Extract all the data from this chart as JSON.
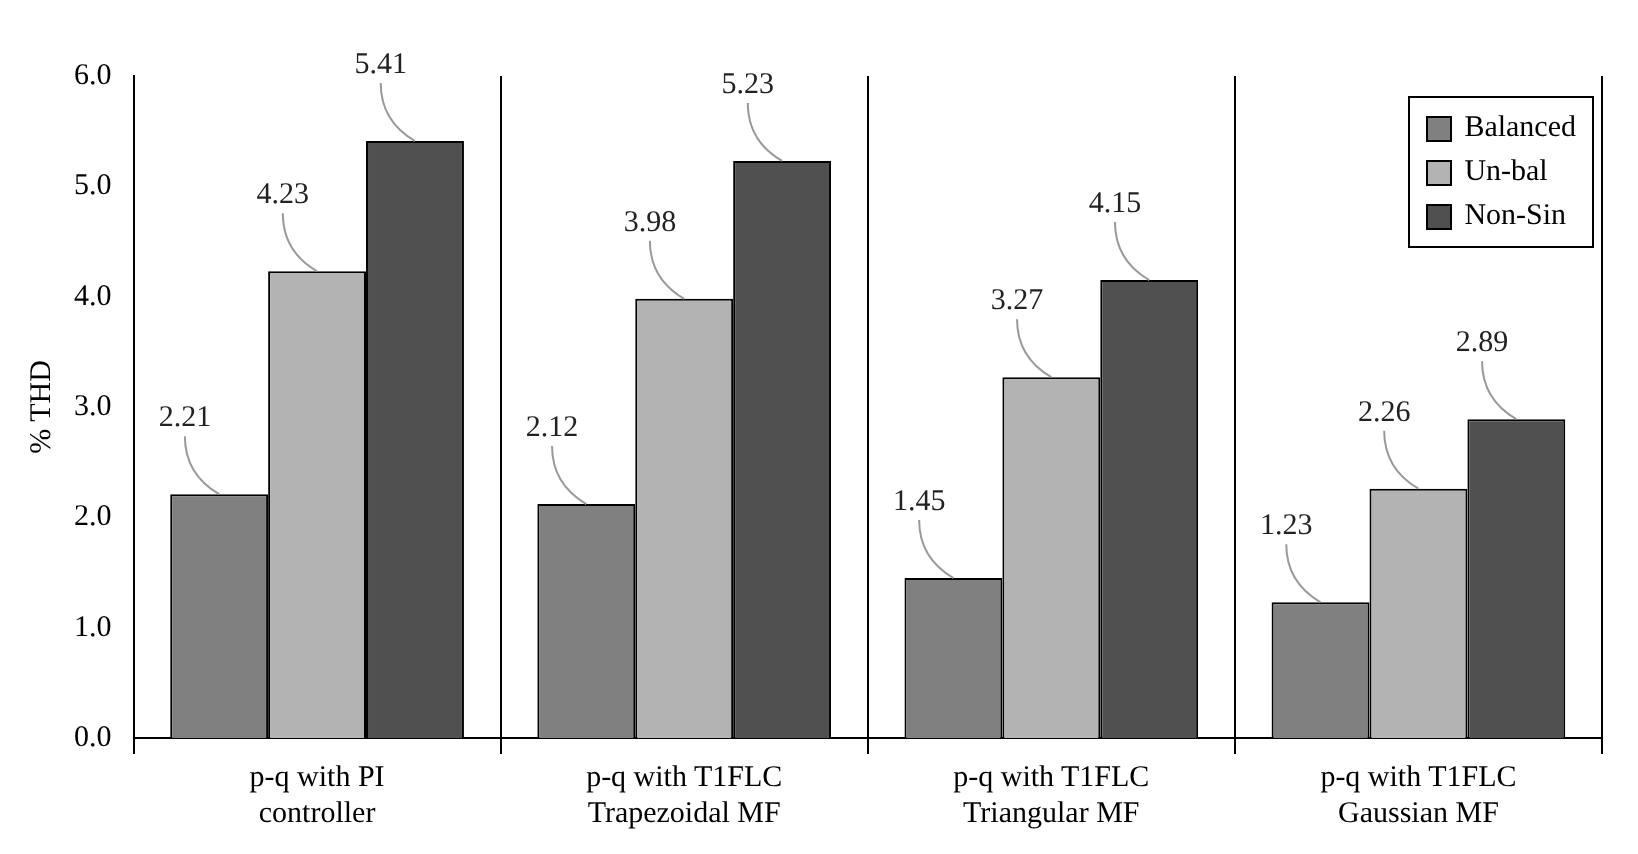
{
  "chart_data": {
    "type": "bar",
    "ylabel": "% THD",
    "categories": [
      "p-q with PI\ncontroller",
      "p-q with T1FLC\nTrapezoidal MF",
      "p-q with T1FLC\nTriangular MF",
      "p-q with T1FLC\nGaussian MF"
    ],
    "series": [
      {
        "name": "Balanced",
        "color": "#808080",
        "values": [
          2.21,
          2.12,
          1.45,
          1.23
        ]
      },
      {
        "name": "Un-bal",
        "color": "#b3b3b3",
        "values": [
          4.23,
          3.98,
          3.27,
          2.26
        ]
      },
      {
        "name": "Non-Sin",
        "color": "#505050",
        "values": [
          5.41,
          5.23,
          4.15,
          2.89
        ]
      }
    ],
    "ylim": [
      0,
      6
    ],
    "yticks": [
      {
        "value": 0,
        "label": "0.0"
      },
      {
        "value": 1,
        "label": "1.0"
      },
      {
        "value": 2,
        "label": "2.0"
      },
      {
        "value": 3,
        "label": "3.0"
      },
      {
        "value": 4,
        "label": "4.0"
      },
      {
        "value": 5,
        "label": "5.0"
      },
      {
        "value": 6,
        "label": "6.0"
      }
    ],
    "grid": "x",
    "legend": "top right",
    "data_labels": true
  }
}
